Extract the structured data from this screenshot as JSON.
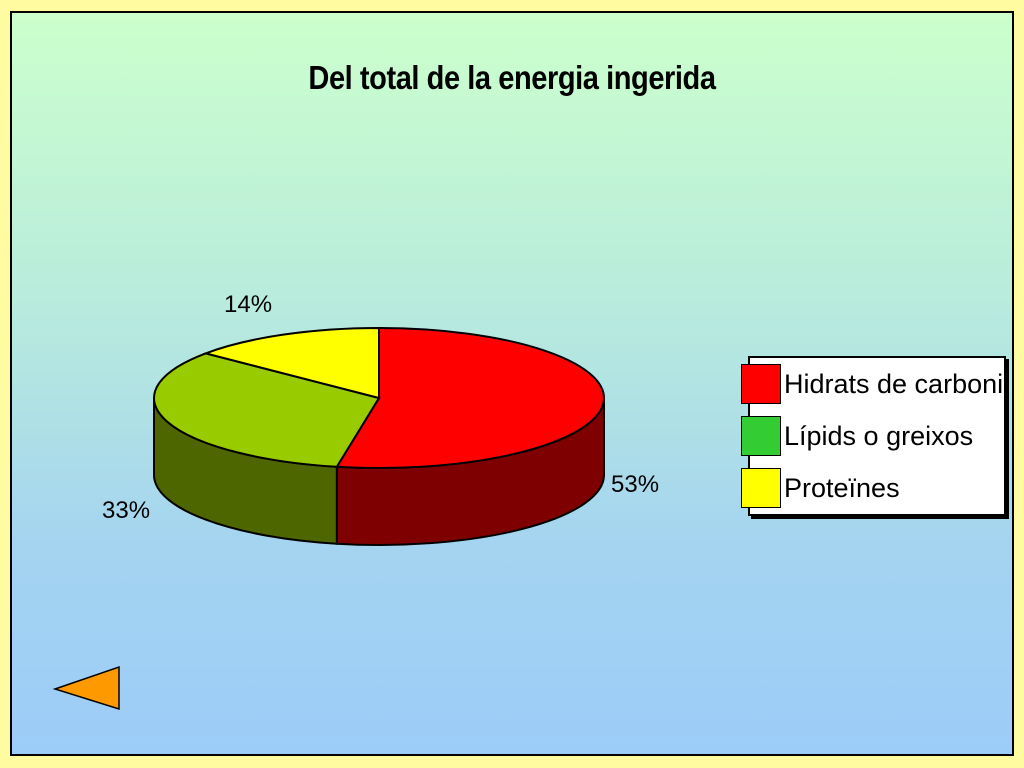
{
  "page": {
    "background": "#fffba0"
  },
  "chart_data": {
    "type": "pie",
    "title": "Del total de la energia ingerida",
    "three_d": true,
    "slices": [
      {
        "label": "Hidrats de carboni",
        "value": 53,
        "value_label": "53%",
        "color": "#ff0000",
        "side_color": "#7f0000"
      },
      {
        "label": "Lípids o greixos",
        "value": 33,
        "value_label": "33%",
        "color": "#99cc00",
        "side_color": "#4d6600",
        "legend_color": "#33cc33"
      },
      {
        "label": "Proteïnes",
        "value": 14,
        "value_label": "14%",
        "color": "#ffff00",
        "side_color": "#808000"
      }
    ],
    "legend_position": "right"
  },
  "nav": {
    "back_arrow_color": "#ff9900",
    "back_arrow_icon": "left-triangle-icon"
  }
}
